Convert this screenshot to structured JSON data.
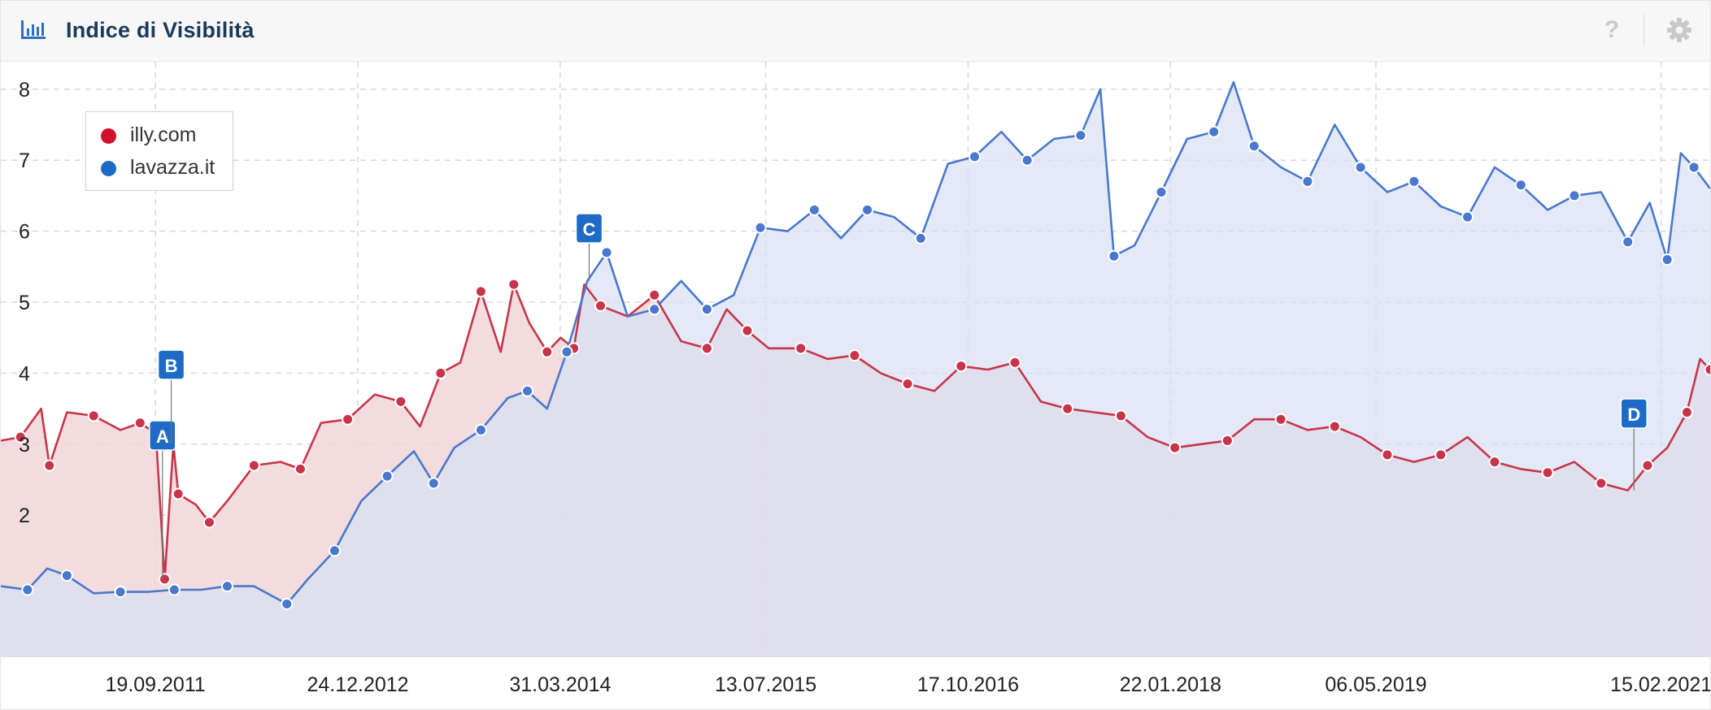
{
  "header": {
    "title": "Indice di Visibilità",
    "chart_icon": "bar-chart-icon",
    "help_icon": "question-icon",
    "help_glyph": "?",
    "settings_icon": "gear-icon"
  },
  "colors": {
    "illy": "#c8354a",
    "lavazza": "#4a78cc",
    "illy_fill": "#f1d6d8",
    "lavazza_fill": "#d7e0f3",
    "overlap_fill": "#cdc2d6",
    "marker": "#1d6bc6",
    "grid": "#d8d8d8"
  },
  "chart_data": {
    "type": "area",
    "title": "Indice di Visibilità",
    "xlabel": "",
    "ylabel": "",
    "ylim": [
      0,
      8.3
    ],
    "xlim": [
      "2010-10-01",
      "2021-06-07"
    ],
    "grid": true,
    "legend_position": "top-left",
    "y_ticks": [
      "2",
      "3",
      "4",
      "5",
      "6",
      "7",
      "8"
    ],
    "x_ticks": [
      "19.09.2011",
      "24.12.2012",
      "31.03.2014",
      "13.07.2015",
      "17.10.2016",
      "22.01.2018",
      "06.05.2019",
      "15.02.2021"
    ],
    "series": [
      {
        "name": "illy.com",
        "points": [
          [
            "2010-10-01",
            3.05
          ],
          [
            "2010-11-15",
            3.1
          ],
          [
            "2011-01-01",
            3.5
          ],
          [
            "2011-01-20",
            2.7
          ],
          [
            "2011-03-01",
            3.45
          ],
          [
            "2011-05-01",
            3.4
          ],
          [
            "2011-07-01",
            3.2
          ],
          [
            "2011-08-15",
            3.3
          ],
          [
            "2011-09-20",
            3.15
          ],
          [
            "2011-10-10",
            1.1
          ],
          [
            "2011-10-30",
            3.0
          ],
          [
            "2011-11-10",
            2.3
          ],
          [
            "2011-12-20",
            2.15
          ],
          [
            "2012-01-20",
            1.9
          ],
          [
            "2012-03-01",
            2.2
          ],
          [
            "2012-05-01",
            2.7
          ],
          [
            "2012-07-01",
            2.75
          ],
          [
            "2012-08-15",
            2.65
          ],
          [
            "2012-10-01",
            3.3
          ],
          [
            "2012-12-01",
            3.35
          ],
          [
            "2013-02-01",
            3.7
          ],
          [
            "2013-04-01",
            3.6
          ],
          [
            "2013-05-15",
            3.25
          ],
          [
            "2013-07-01",
            4.0
          ],
          [
            "2013-08-15",
            4.15
          ],
          [
            "2013-10-01",
            5.15
          ],
          [
            "2013-11-15",
            4.3
          ],
          [
            "2013-12-15",
            5.25
          ],
          [
            "2014-01-20",
            4.7
          ],
          [
            "2014-03-01",
            4.3
          ],
          [
            "2014-04-01",
            4.5
          ],
          [
            "2014-05-01",
            4.35
          ],
          [
            "2014-05-25",
            5.25
          ],
          [
            "2014-07-01",
            4.95
          ],
          [
            "2014-09-01",
            4.8
          ],
          [
            "2014-11-01",
            5.1
          ],
          [
            "2015-01-01",
            4.45
          ],
          [
            "2015-03-01",
            4.35
          ],
          [
            "2015-04-15",
            4.9
          ],
          [
            "2015-06-01",
            4.6
          ],
          [
            "2015-07-20",
            4.35
          ],
          [
            "2015-10-01",
            4.35
          ],
          [
            "2015-12-01",
            4.2
          ],
          [
            "2016-02-01",
            4.25
          ],
          [
            "2016-04-01",
            4.0
          ],
          [
            "2016-06-01",
            3.85
          ],
          [
            "2016-08-01",
            3.75
          ],
          [
            "2016-10-01",
            4.1
          ],
          [
            "2016-12-01",
            4.05
          ],
          [
            "2017-02-01",
            4.15
          ],
          [
            "2017-04-01",
            3.6
          ],
          [
            "2017-06-01",
            3.5
          ],
          [
            "2017-08-01",
            3.45
          ],
          [
            "2017-10-01",
            3.4
          ],
          [
            "2017-12-01",
            3.1
          ],
          [
            "2018-02-01",
            2.95
          ],
          [
            "2018-04-01",
            3.0
          ],
          [
            "2018-06-01",
            3.05
          ],
          [
            "2018-08-01",
            3.35
          ],
          [
            "2018-10-01",
            3.35
          ],
          [
            "2018-12-01",
            3.2
          ],
          [
            "2019-02-01",
            3.25
          ],
          [
            "2019-04-01",
            3.1
          ],
          [
            "2019-06-01",
            2.85
          ],
          [
            "2019-08-01",
            2.75
          ],
          [
            "2019-10-01",
            2.85
          ],
          [
            "2019-12-01",
            3.1
          ],
          [
            "2020-02-01",
            2.75
          ],
          [
            "2020-04-01",
            2.65
          ],
          [
            "2020-06-01",
            2.6
          ],
          [
            "2020-08-01",
            2.75
          ],
          [
            "2020-10-01",
            2.45
          ],
          [
            "2020-12-01",
            2.35
          ],
          [
            "2021-01-15",
            2.7
          ],
          [
            "2021-03-01",
            2.95
          ],
          [
            "2021-04-15",
            3.45
          ],
          [
            "2021-05-15",
            4.2
          ],
          [
            "2021-06-07",
            4.05
          ]
        ]
      },
      {
        "name": "lavazza.it",
        "points": [
          [
            "2010-10-01",
            1.0
          ],
          [
            "2010-12-01",
            0.95
          ],
          [
            "2011-01-15",
            1.25
          ],
          [
            "2011-03-01",
            1.15
          ],
          [
            "2011-05-01",
            0.9
          ],
          [
            "2011-07-01",
            0.92
          ],
          [
            "2011-09-01",
            0.92
          ],
          [
            "2011-11-01",
            0.95
          ],
          [
            "2012-01-01",
            0.95
          ],
          [
            "2012-03-01",
            1.0
          ],
          [
            "2012-05-01",
            1.0
          ],
          [
            "2012-07-15",
            0.75
          ],
          [
            "2012-09-01",
            1.1
          ],
          [
            "2012-11-01",
            1.5
          ],
          [
            "2013-01-01",
            2.2
          ],
          [
            "2013-03-01",
            2.55
          ],
          [
            "2013-05-01",
            2.9
          ],
          [
            "2013-06-15",
            2.45
          ],
          [
            "2013-08-01",
            2.95
          ],
          [
            "2013-10-01",
            3.2
          ],
          [
            "2013-12-01",
            3.65
          ],
          [
            "2014-01-15",
            3.75
          ],
          [
            "2014-03-01",
            3.5
          ],
          [
            "2014-04-15",
            4.3
          ],
          [
            "2014-06-01",
            5.3
          ],
          [
            "2014-07-15",
            5.7
          ],
          [
            "2014-09-01",
            4.8
          ],
          [
            "2014-11-01",
            4.9
          ],
          [
            "2015-01-01",
            5.3
          ],
          [
            "2015-03-01",
            4.9
          ],
          [
            "2015-05-01",
            5.1
          ],
          [
            "2015-07-01",
            6.05
          ],
          [
            "2015-09-01",
            6.0
          ],
          [
            "2015-11-01",
            6.3
          ],
          [
            "2016-01-01",
            5.9
          ],
          [
            "2016-03-01",
            6.3
          ],
          [
            "2016-05-01",
            6.2
          ],
          [
            "2016-07-01",
            5.9
          ],
          [
            "2016-09-01",
            6.95
          ],
          [
            "2016-11-01",
            7.05
          ],
          [
            "2017-01-01",
            7.4
          ],
          [
            "2017-03-01",
            7.0
          ],
          [
            "2017-05-01",
            7.3
          ],
          [
            "2017-07-01",
            7.35
          ],
          [
            "2017-08-15",
            8.0
          ],
          [
            "2017-09-15",
            5.65
          ],
          [
            "2017-11-01",
            5.8
          ],
          [
            "2018-01-01",
            6.55
          ],
          [
            "2018-03-01",
            7.3
          ],
          [
            "2018-05-01",
            7.4
          ],
          [
            "2018-06-15",
            8.1
          ],
          [
            "2018-08-01",
            7.2
          ],
          [
            "2018-10-01",
            6.9
          ],
          [
            "2018-12-01",
            6.7
          ],
          [
            "2019-02-01",
            7.5
          ],
          [
            "2019-04-01",
            6.9
          ],
          [
            "2019-06-01",
            6.55
          ],
          [
            "2019-08-01",
            6.7
          ],
          [
            "2019-10-01",
            6.35
          ],
          [
            "2019-12-01",
            6.2
          ],
          [
            "2020-02-01",
            6.9
          ],
          [
            "2020-04-01",
            6.65
          ],
          [
            "2020-06-01",
            6.3
          ],
          [
            "2020-08-01",
            6.5
          ],
          [
            "2020-10-01",
            6.55
          ],
          [
            "2020-12-01",
            5.85
          ],
          [
            "2021-01-20",
            6.4
          ],
          [
            "2021-03-01",
            5.6
          ],
          [
            "2021-04-01",
            7.1
          ],
          [
            "2021-05-01",
            6.9
          ],
          [
            "2021-06-07",
            6.6
          ]
        ]
      }
    ],
    "annotations": [
      {
        "label": "A",
        "date": "2011-10-05",
        "series": "illy.com"
      },
      {
        "label": "B",
        "date": "2011-10-25",
        "series": "illy.com"
      },
      {
        "label": "C",
        "date": "2014-06-05",
        "series": "lavazza.it"
      },
      {
        "label": "D",
        "date": "2020-12-15",
        "series": "illy.com"
      }
    ]
  }
}
